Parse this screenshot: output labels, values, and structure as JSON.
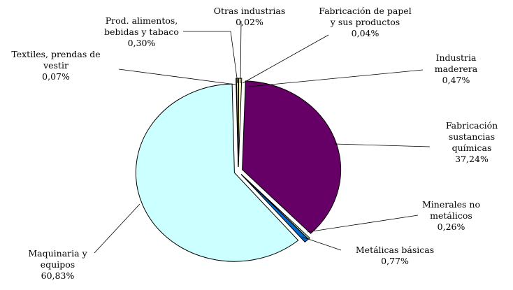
{
  "chart_data": {
    "type": "pie",
    "categories": [
      "Otras industrias",
      "Fabricación de papel y sus productos",
      "Industria maderera",
      "Fabricación sustancias químicas",
      "Minerales no metálicos",
      "Metálicas básicas",
      "Maquinaria y equipos",
      "Textiles, prendas de vestir",
      "Prod. alimentos, bebidas y tabaco"
    ],
    "values": [
      0.02,
      0.04,
      0.47,
      37.24,
      0.26,
      0.77,
      60.83,
      0.07,
      0.3
    ],
    "value_labels": [
      "0,02%",
      "0,04%",
      "0,47%",
      "37,24%",
      "0,26%",
      "0,77%",
      "60,83%",
      "0,07%",
      "0,30%"
    ],
    "colors": [
      "#ffffcc",
      "#ffcc99",
      "#ffffcc",
      "#660066",
      "#ccffcc",
      "#0066cc",
      "#ccffff",
      "#ff8080",
      "#ffff99"
    ]
  }
}
